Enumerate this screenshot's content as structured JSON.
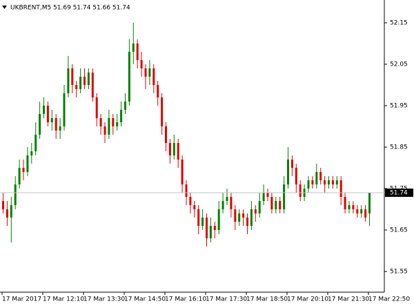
{
  "chart_data": {
    "type": "candlestick",
    "title": "UKBRENT,M5  51.69 51.74 51.66 51.74",
    "categories": [
      "17 Mar 2017",
      null,
      null,
      null,
      null,
      null,
      null,
      null,
      null,
      null,
      "17 Mar 12:10",
      null,
      null,
      null,
      null,
      null,
      null,
      null,
      null,
      null,
      "17 Mar 13:30",
      null,
      null,
      null,
      null,
      null,
      null,
      null,
      null,
      null,
      "17 Mar 14:50",
      null,
      null,
      null,
      null,
      null,
      null,
      null,
      null,
      null,
      "17 Mar 16:10",
      null,
      null,
      null,
      null,
      null,
      null,
      null,
      null,
      null,
      "17 Mar 17:30",
      null,
      null,
      null,
      null,
      null,
      null,
      null,
      null,
      null,
      "17 Mar 18:50",
      null,
      null,
      null,
      null,
      null,
      null,
      null,
      null,
      null,
      "17 Mar 20:10",
      null,
      null,
      null,
      null,
      null,
      null,
      null,
      null,
      null,
      "17 Mar 21:30",
      null,
      null,
      null,
      null,
      null,
      null,
      null,
      null,
      null,
      "17 Mar 22:50"
    ],
    "open": [
      51.72,
      51.7,
      51.68,
      51.71,
      51.76,
      51.8,
      51.79,
      51.83,
      51.84,
      51.88,
      51.93,
      51.95,
      51.91,
      51.92,
      51.89,
      51.9,
      51.98,
      52.04,
      52.0,
      51.99,
      52.02,
      52.0,
      52.03,
      51.97,
      51.92,
      51.9,
      51.88,
      51.92,
      51.9,
      51.91,
      51.94,
      51.96,
      52.08,
      52.1,
      52.06,
      52.04,
      52.02,
      52.04,
      52.0,
      51.97,
      51.9,
      51.86,
      51.83,
      51.86,
      51.82,
      51.76,
      51.73,
      51.71,
      51.7,
      51.66,
      51.68,
      51.63,
      51.66,
      51.65,
      51.7,
      51.72,
      51.73,
      51.7,
      51.67,
      51.69,
      51.68,
      51.66,
      51.7,
      51.69,
      51.72,
      51.74,
      51.73,
      51.7,
      51.72,
      51.7,
      51.76,
      51.82,
      51.8,
      51.76,
      51.73,
      51.75,
      51.77,
      51.76,
      51.79,
      51.77,
      51.76,
      51.77,
      51.76,
      51.77,
      51.73,
      51.7,
      51.71,
      51.7,
      51.69,
      51.7,
      51.69
    ],
    "high": [
      51.74,
      51.72,
      51.73,
      51.78,
      51.82,
      51.82,
      51.85,
      51.86,
      51.91,
      51.96,
      51.97,
      51.96,
      51.94,
      51.93,
      51.92,
      52.0,
      52.07,
      52.05,
      52.01,
      52.04,
      52.04,
      52.04,
      52.04,
      51.98,
      51.93,
      51.91,
      51.94,
      51.93,
      51.93,
      51.96,
      51.98,
      52.11,
      52.15,
      52.11,
      52.08,
      52.05,
      52.06,
      52.05,
      52.01,
      51.98,
      51.91,
      51.87,
      51.88,
      51.87,
      51.83,
      51.77,
      51.74,
      51.72,
      51.71,
      51.7,
      51.69,
      51.68,
      51.67,
      51.72,
      51.74,
      51.75,
      51.74,
      51.71,
      51.7,
      51.7,
      51.69,
      51.72,
      51.71,
      51.74,
      51.76,
      51.75,
      51.74,
      51.73,
      51.73,
      51.78,
      51.85,
      51.83,
      51.81,
      51.77,
      51.76,
      51.78,
      51.78,
      51.81,
      51.8,
      51.78,
      51.78,
      51.78,
      51.78,
      51.78,
      51.74,
      51.72,
      51.72,
      51.71,
      51.71,
      51.71,
      51.74
    ],
    "low": [
      51.69,
      51.66,
      51.62,
      51.7,
      51.75,
      51.77,
      51.78,
      51.81,
      51.83,
      51.87,
      51.92,
      51.9,
      51.89,
      51.87,
      51.87,
      51.89,
      51.97,
      51.98,
      51.97,
      51.98,
      51.99,
      51.99,
      51.96,
      51.9,
      51.88,
      51.86,
      51.87,
      51.88,
      51.89,
      51.9,
      51.93,
      51.95,
      52.05,
      52.04,
      52.02,
      51.99,
      52.0,
      51.98,
      51.95,
      51.88,
      51.84,
      51.81,
      51.82,
      51.8,
      51.74,
      51.71,
      51.69,
      51.68,
      51.64,
      51.65,
      51.61,
      51.62,
      51.63,
      51.64,
      51.69,
      51.71,
      51.68,
      51.65,
      51.66,
      51.66,
      51.64,
      51.65,
      51.67,
      51.68,
      51.71,
      51.72,
      51.69,
      51.69,
      51.69,
      51.69,
      51.75,
      51.78,
      51.74,
      51.72,
      51.72,
      51.74,
      51.75,
      51.75,
      51.76,
      51.74,
      51.75,
      51.75,
      51.75,
      51.71,
      51.69,
      51.69,
      51.69,
      51.68,
      51.68,
      51.67,
      51.66
    ],
    "close": [
      51.7,
      51.68,
      51.71,
      51.76,
      51.8,
      51.79,
      51.83,
      51.84,
      51.88,
      51.93,
      51.95,
      51.91,
      51.92,
      51.89,
      51.9,
      51.98,
      52.04,
      52.0,
      51.99,
      52.02,
      52.0,
      52.03,
      51.97,
      51.92,
      51.9,
      51.88,
      51.92,
      51.9,
      51.91,
      51.94,
      51.96,
      52.08,
      52.1,
      52.06,
      52.04,
      52.02,
      52.04,
      52.0,
      51.97,
      51.9,
      51.86,
      51.83,
      51.86,
      51.82,
      51.76,
      51.73,
      51.71,
      51.7,
      51.66,
      51.68,
      51.63,
      51.66,
      51.65,
      51.7,
      51.72,
      51.73,
      51.7,
      51.67,
      51.69,
      51.68,
      51.66,
      51.7,
      51.69,
      51.72,
      51.74,
      51.73,
      51.7,
      51.72,
      51.7,
      51.76,
      51.82,
      51.8,
      51.76,
      51.73,
      51.75,
      51.77,
      51.76,
      51.79,
      51.77,
      51.76,
      51.77,
      51.76,
      51.77,
      51.73,
      51.7,
      51.71,
      51.7,
      51.69,
      51.7,
      51.68,
      51.74
    ],
    "up_color": "#008000",
    "down_color": "#e00000",
    "ylim": [
      51.5,
      52.205
    ],
    "yticks": [
      52.15,
      52.05,
      51.95,
      51.85,
      51.75,
      51.65,
      51.55
    ],
    "last_price": 51.74,
    "last_price_line_color": "#c0c0c0",
    "grid": false
  }
}
